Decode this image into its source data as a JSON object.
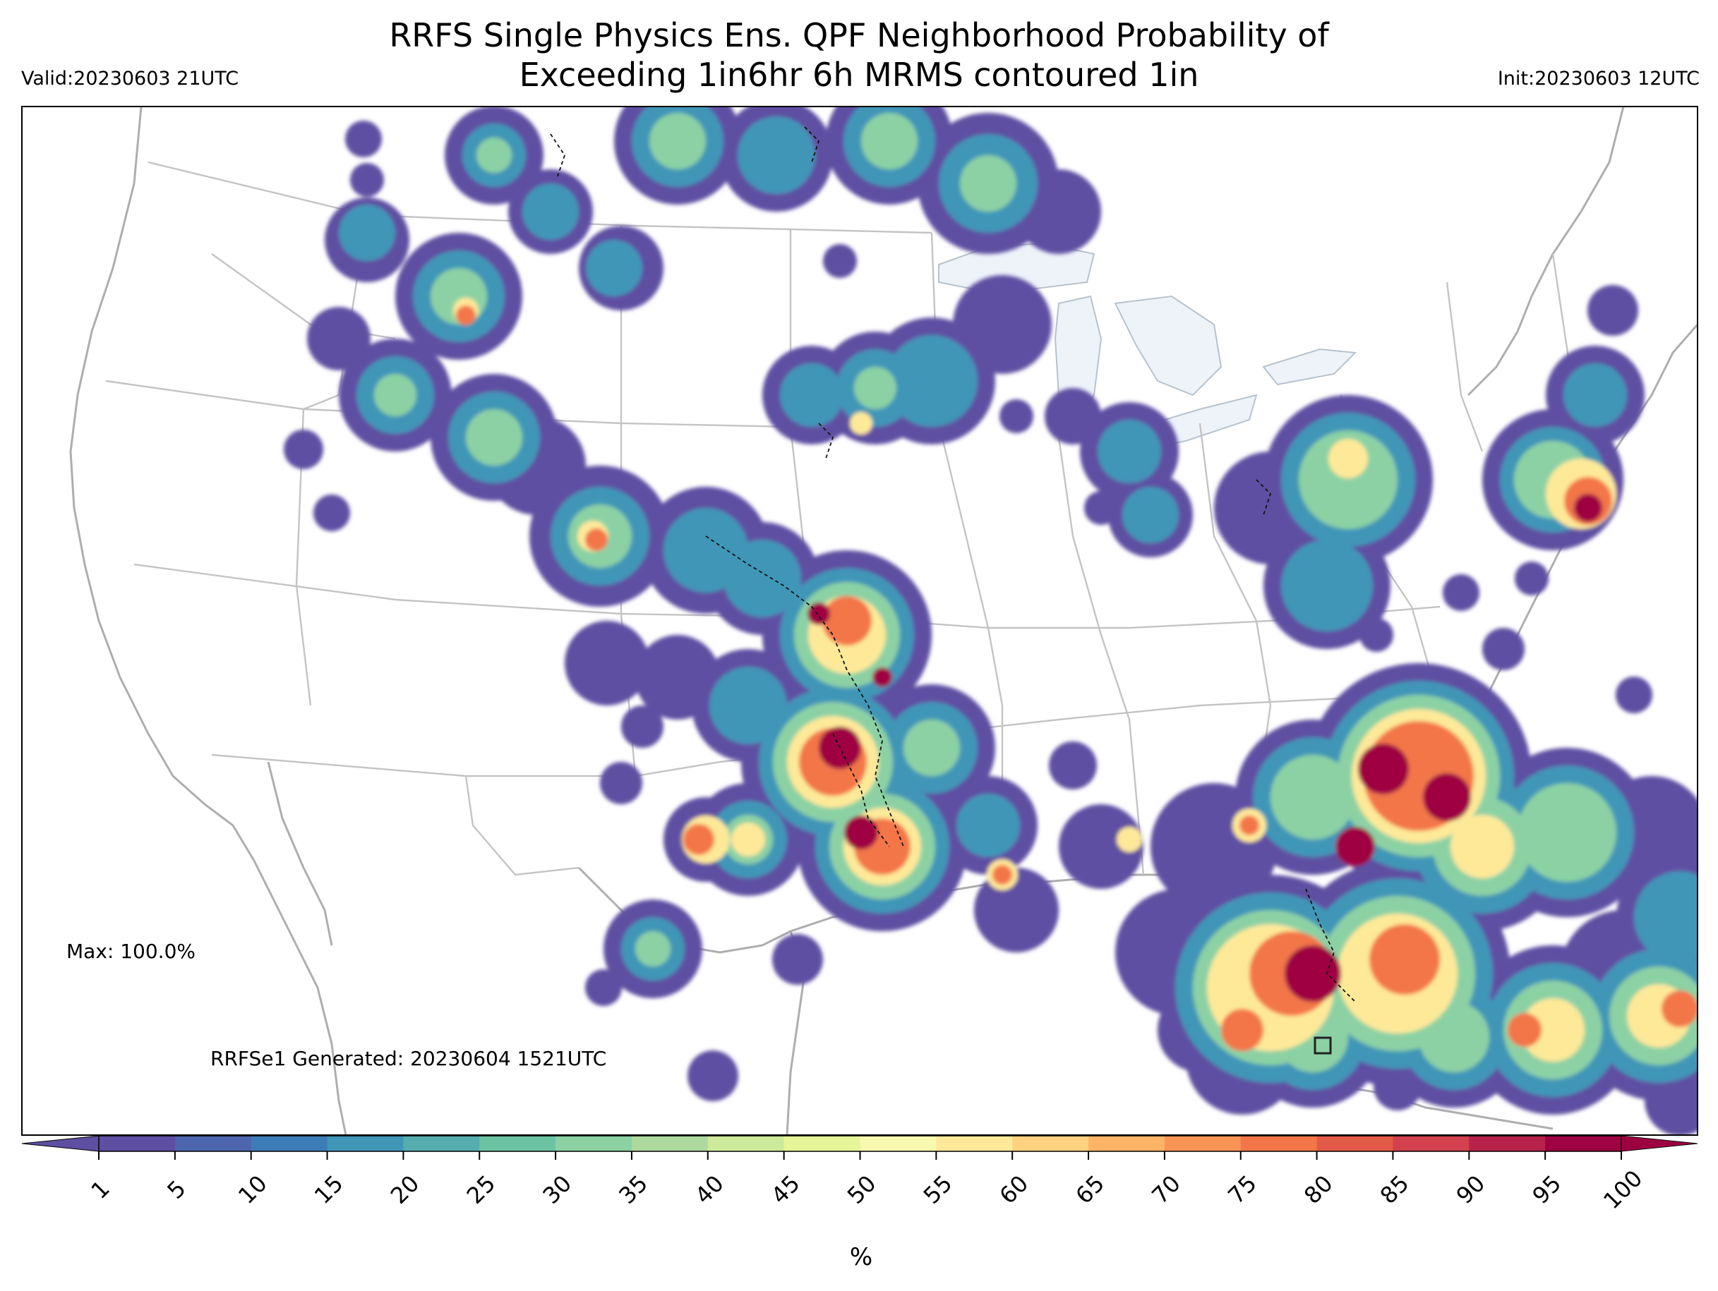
{
  "title_line1": "RRFS Single Physics Ens. QPF Neighborhood Probability of",
  "title_line2": "Exceeding 1in6hr 6h MRMS contoured 1in",
  "valid": "Valid:20230603 21UTC",
  "init": "Init:20230603 12UTC",
  "max_label": "Max: 100.0%",
  "generated_label": "RRFSe1 Generated: 20230604 1521UTC",
  "colorbar": {
    "unit": "%",
    "ticks": [
      "1",
      "5",
      "10",
      "15",
      "20",
      "25",
      "30",
      "35",
      "40",
      "45",
      "50",
      "55",
      "60",
      "65",
      "70",
      "75",
      "80",
      "85",
      "90",
      "95",
      "100"
    ],
    "colors": [
      "#5e4fa2",
      "#4d65ad",
      "#3d7db7",
      "#3f96b7",
      "#55adae",
      "#6cc3a4",
      "#8cd1a4",
      "#add99e",
      "#cdea9b",
      "#e6f598",
      "#f6f9ae",
      "#fee999",
      "#fed27f",
      "#fdb466",
      "#f99455",
      "#f37648",
      "#e45a49",
      "#d3404e",
      "#b6224a",
      "#9e0142"
    ]
  }
}
